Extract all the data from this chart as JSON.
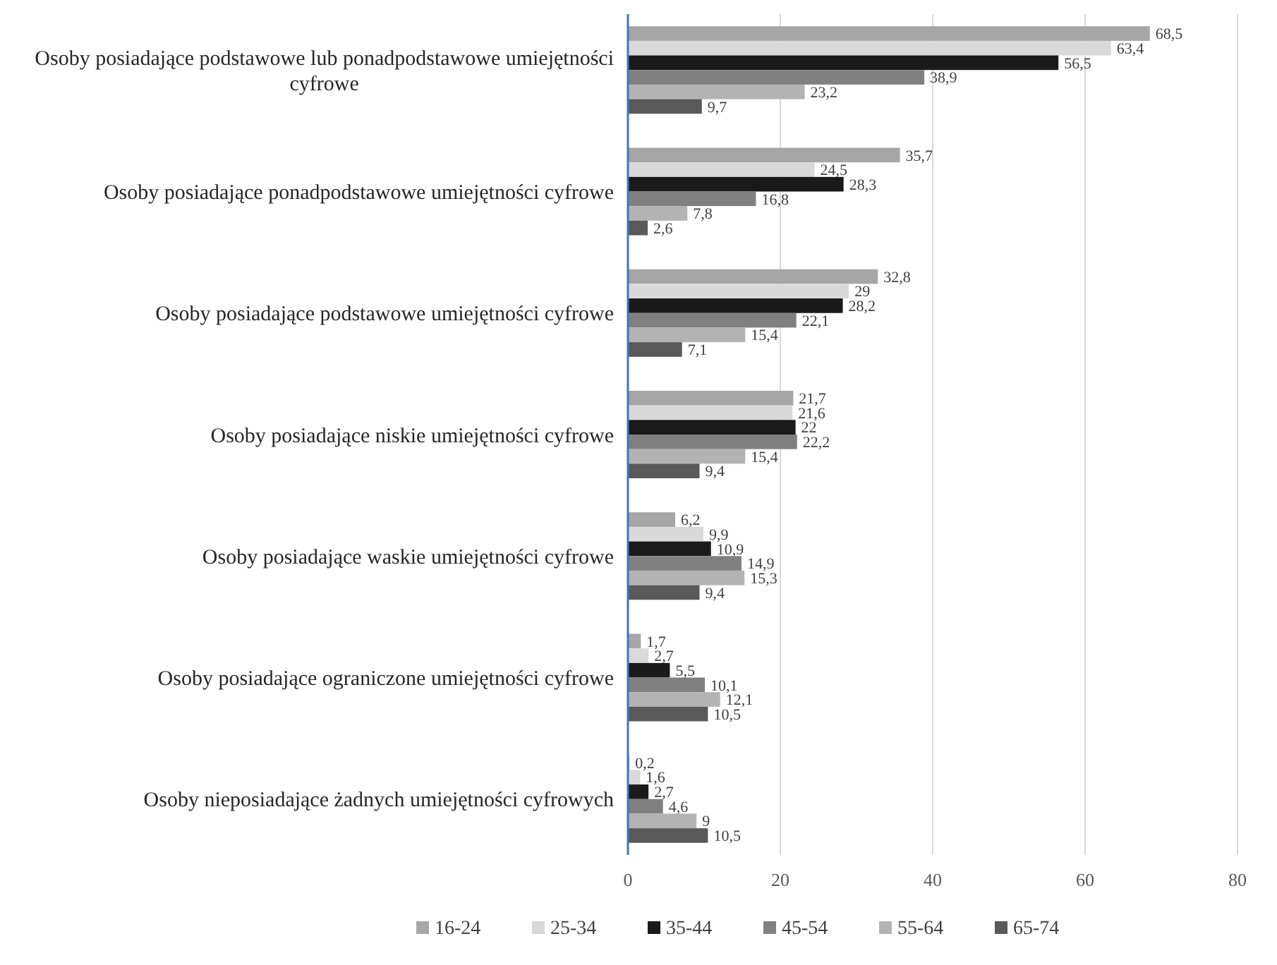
{
  "chart_data": {
    "type": "bar",
    "orientation": "horizontal",
    "categories": [
      "Osoby posiadające podstawowe lub ponadpodstawowe umiejętności cyfrowe",
      "Osoby posiadające ponadpodstawowe umiejętności cyfrowe",
      "Osoby posiadające podstawowe umiejętności cyfrowe",
      "Osoby posiadające niskie umiejętności cyfrowe",
      "Osoby posiadające waskie umiejętności cyfrowe",
      "Osoby posiadające ograniczone umiejętności cyfrowe",
      "Osoby nieposiadające żadnych umiejętności cyfrowych"
    ],
    "series": [
      {
        "name": "16-24",
        "color": "#a6a6a6",
        "values": [
          68.5,
          35.7,
          32.8,
          21.7,
          6.2,
          1.7,
          0.2
        ],
        "value_labels": [
          "68,5",
          "35,7",
          "32,8",
          "21,7",
          "6,2",
          "1,7",
          "0,2"
        ]
      },
      {
        "name": "25-34",
        "color": "#d9d9d9",
        "values": [
          63.4,
          24.5,
          29,
          21.6,
          9.9,
          2.7,
          1.6
        ],
        "value_labels": [
          "63,4",
          "24,5",
          "29",
          "21,6",
          "9,9",
          "2,7",
          "1,6"
        ]
      },
      {
        "name": "35-44",
        "color": "#1a1a1a",
        "values": [
          56.5,
          28.3,
          28.2,
          22,
          10.9,
          5.5,
          2.7
        ],
        "value_labels": [
          "56,5",
          "28,3",
          "28,2",
          "22",
          "10,9",
          "5,5",
          "2,7"
        ]
      },
      {
        "name": "45-54",
        "color": "#808080",
        "values": [
          38.9,
          16.8,
          22.1,
          22.2,
          14.9,
          10.1,
          4.6
        ],
        "value_labels": [
          "38,9",
          "16,8",
          "22,1",
          "22,2",
          "14,9",
          "10,1",
          "4,6"
        ]
      },
      {
        "name": "55-64",
        "color": "#b3b3b3",
        "values": [
          23.2,
          7.8,
          15.4,
          15.4,
          15.3,
          12.1,
          9
        ],
        "value_labels": [
          "23,2",
          "7,8",
          "15,4",
          "15,4",
          "15,3",
          "12,1",
          "9"
        ]
      },
      {
        "name": "65-74",
        "color": "#595959",
        "values": [
          9.7,
          2.6,
          7.1,
          9.4,
          9.4,
          10.5,
          10.5
        ],
        "value_labels": [
          "9,7",
          "2,6",
          "7,1",
          "9,4",
          "9,4",
          "10,5",
          "10,5"
        ]
      }
    ],
    "xlim": [
      0,
      80
    ],
    "xticks": [
      0,
      20,
      40,
      60,
      80
    ],
    "grid": "x",
    "legend": "bottom"
  }
}
